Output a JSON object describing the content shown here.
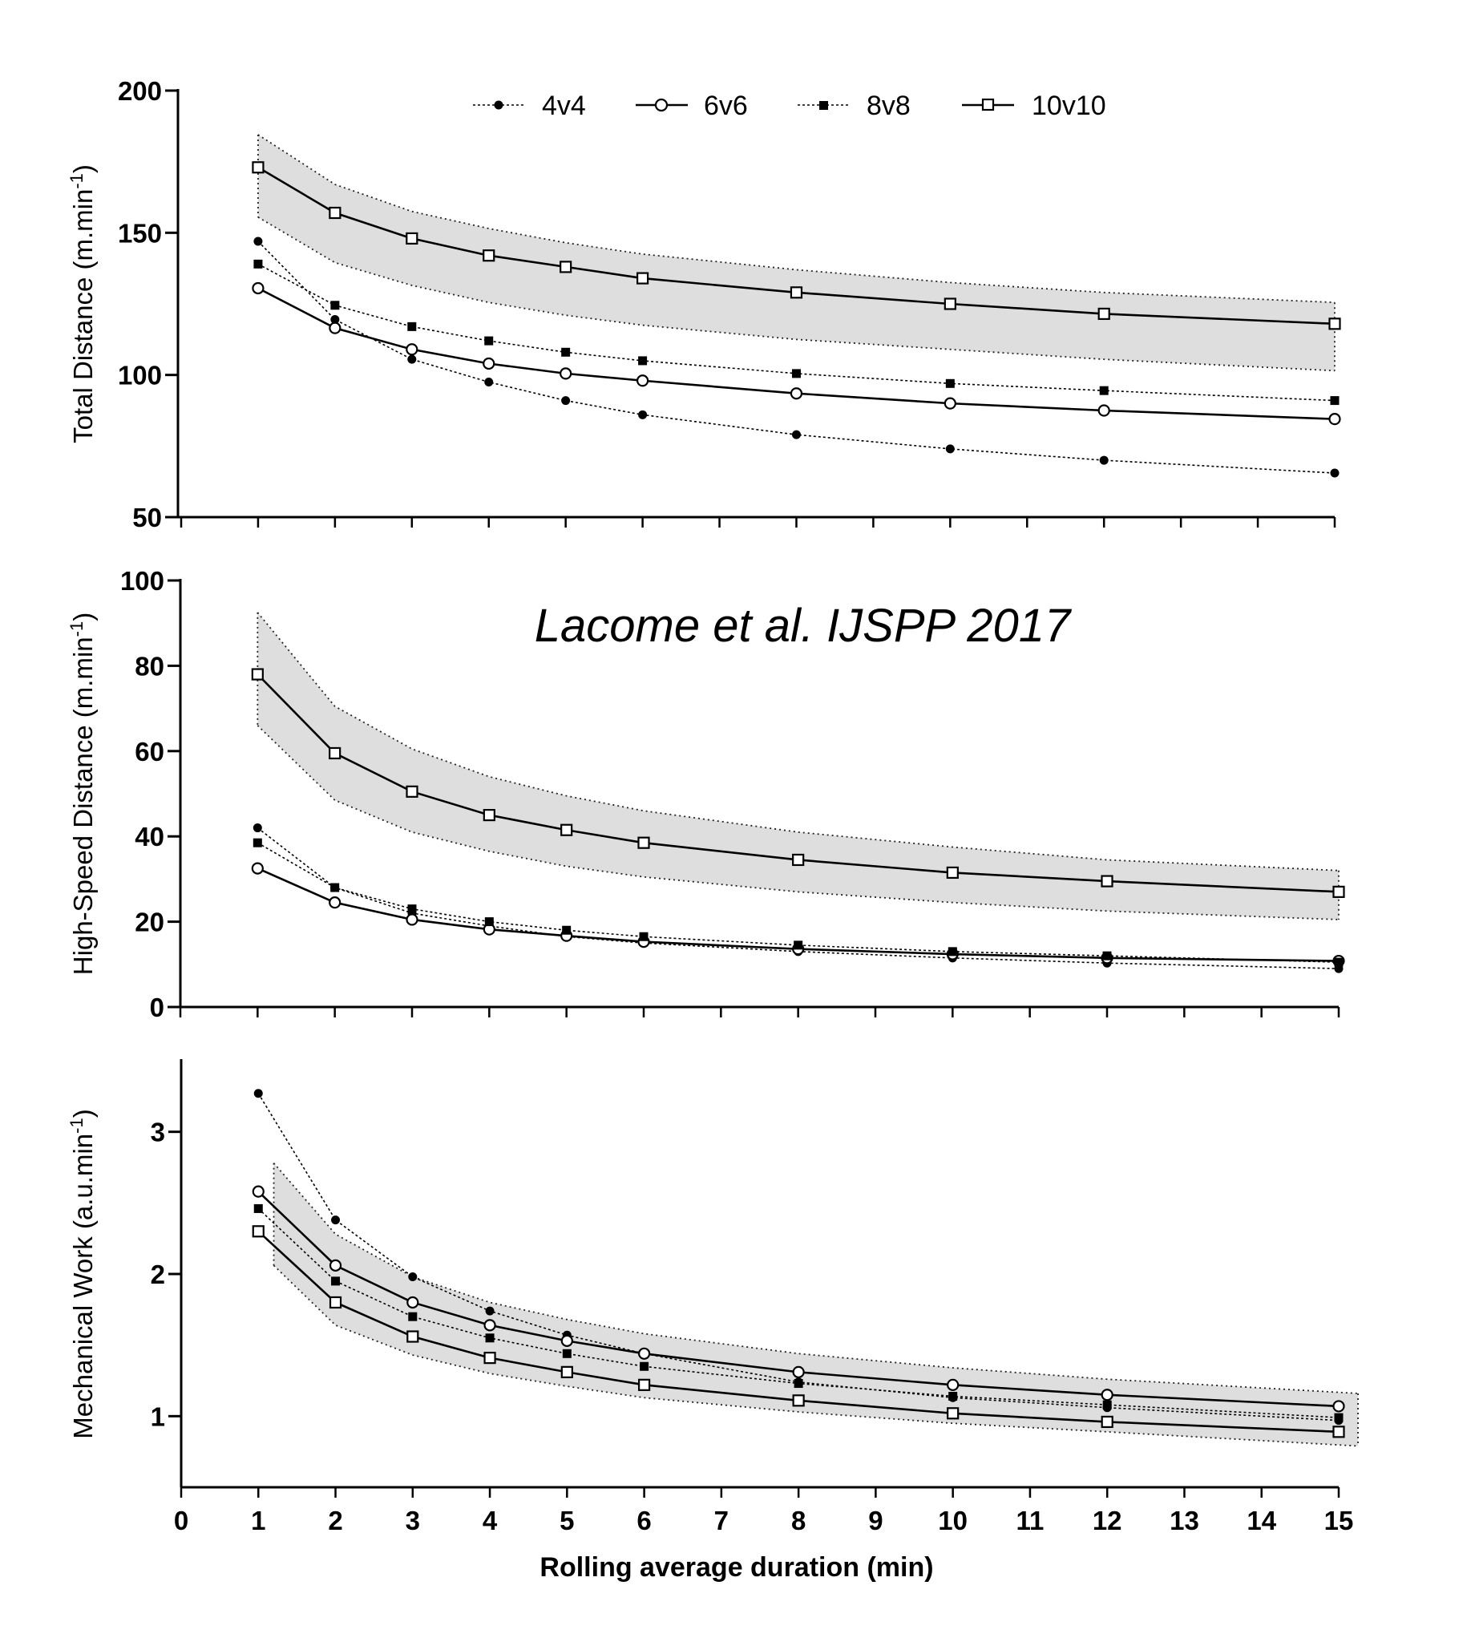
{
  "chart_data": {
    "type": "line",
    "annotation": "Lacome et al. IJSPP 2017",
    "xlabel": "Rolling average duration (min)",
    "xlim": [
      0,
      15
    ],
    "x_ticks": [
      0,
      1,
      2,
      3,
      4,
      5,
      6,
      7,
      8,
      9,
      10,
      11,
      12,
      13,
      14,
      15
    ],
    "x": [
      1,
      2,
      3,
      4,
      5,
      6,
      8,
      10,
      12,
      15
    ],
    "legend": {
      "placement": "top-center",
      "entries": [
        "4v4",
        "6v6",
        "8v8",
        "10v10"
      ]
    },
    "series_style": [
      {
        "name": "4v4",
        "marker": "filled-circle",
        "line": "dotted"
      },
      {
        "name": "6v6",
        "marker": "open-circle",
        "line": "solid"
      },
      {
        "name": "8v8",
        "marker": "filled-square",
        "line": "dotted"
      },
      {
        "name": "10v10",
        "marker": "open-square",
        "line": "solid"
      }
    ],
    "panels": [
      {
        "ylabel_main": "Total Distance (m.min",
        "ylabel_sup": "-1",
        "ylabel_end": ")",
        "ylim": [
          50,
          200
        ],
        "y_ticks": [
          50,
          100,
          150,
          200
        ],
        "series": [
          {
            "name": "4v4",
            "values": [
              147,
              119.5,
              105.5,
              97.5,
              91,
              86,
              79,
              74,
              70,
              65.5
            ]
          },
          {
            "name": "6v6",
            "values": [
              130.5,
              116.5,
              109,
              104,
              100.5,
              98,
              93.5,
              90,
              87.5,
              84.5
            ]
          },
          {
            "name": "8v8",
            "values": [
              139,
              124.5,
              117,
              112,
              108,
              105,
              100.5,
              97,
              94.5,
              91
            ]
          },
          {
            "name": "10v10",
            "values": [
              173,
              157,
              148,
              142,
              138,
              134,
              129,
              125,
              121.5,
              118
            ]
          }
        ],
        "band": {
          "x": [
            1,
            2,
            3,
            4,
            5,
            6,
            8,
            10,
            12,
            15
          ],
          "upper": [
            184.5,
            167,
            157.5,
            151.5,
            146.5,
            142.5,
            137,
            132.5,
            129,
            125.5
          ],
          "lower": [
            155.5,
            139.5,
            131.5,
            125.5,
            121,
            117.5,
            112.5,
            109,
            105.5,
            101.5
          ]
        }
      },
      {
        "ylabel_main": "High-Speed Distance (m.min",
        "ylabel_sup": "-1",
        "ylabel_end": ")",
        "ylim": [
          0,
          100
        ],
        "y_ticks": [
          0,
          20,
          40,
          60,
          80,
          100
        ],
        "series": [
          {
            "name": "4v4",
            "values": [
              42,
              28,
              22,
              19,
              16.5,
              15,
              13,
              11.5,
              10.3,
              9
            ]
          },
          {
            "name": "6v6",
            "values": [
              32.5,
              24.5,
              20.5,
              18.2,
              16.7,
              15.3,
              13.6,
              12.4,
              11.5,
              10.8
            ]
          },
          {
            "name": "8v8",
            "values": [
              38.5,
              28,
              23,
              20,
              18,
              16.5,
              14.5,
              13,
              12,
              10.5
            ]
          },
          {
            "name": "10v10",
            "values": [
              78,
              59.5,
              50.5,
              45,
              41.5,
              38.5,
              34.5,
              31.5,
              29.5,
              27
            ]
          }
        ],
        "band": {
          "x": [
            1,
            2,
            3,
            4,
            5,
            6,
            8,
            10,
            12,
            15
          ],
          "upper": [
            92.5,
            70.5,
            60.5,
            54,
            49.5,
            46,
            41,
            37.5,
            34.5,
            32
          ],
          "lower": [
            66,
            48.5,
            41,
            36.5,
            33,
            30.5,
            27,
            24.5,
            22.5,
            20.5
          ]
        }
      },
      {
        "ylabel_main": "Mechanical Work (a.u.min",
        "ylabel_sup": "-1",
        "ylabel_end": ")",
        "ylim": [
          0.5,
          3.5
        ],
        "y_ticks": [
          1,
          2,
          3
        ],
        "series": [
          {
            "name": "4v4",
            "values": [
              3.27,
              2.38,
              1.98,
              1.74,
              1.57,
              1.44,
              1.24,
              1.13,
              1.06,
              0.97
            ]
          },
          {
            "name": "6v6",
            "values": [
              2.58,
              2.06,
              1.8,
              1.64,
              1.53,
              1.44,
              1.31,
              1.22,
              1.15,
              1.07
            ]
          },
          {
            "name": "8v8",
            "values": [
              2.46,
              1.95,
              1.7,
              1.55,
              1.44,
              1.35,
              1.23,
              1.14,
              1.08,
              0.99
            ]
          },
          {
            "name": "10v10",
            "values": [
              2.3,
              1.8,
              1.56,
              1.41,
              1.31,
              1.22,
              1.11,
              1.02,
              0.96,
              0.89
            ]
          }
        ],
        "band": {
          "x": [
            1.2,
            2,
            3,
            4,
            5,
            6,
            8,
            10,
            12,
            15.25
          ],
          "upper": [
            2.78,
            2.28,
            1.98,
            1.8,
            1.68,
            1.58,
            1.44,
            1.34,
            1.26,
            1.16
          ],
          "lower": [
            2.06,
            1.64,
            1.43,
            1.3,
            1.21,
            1.13,
            1.03,
            0.95,
            0.89,
            0.79
          ]
        }
      }
    ]
  }
}
